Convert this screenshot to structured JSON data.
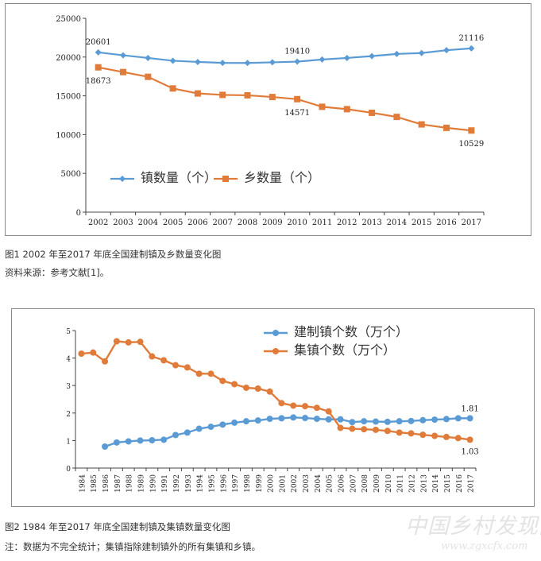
{
  "figure1": {
    "caption": "图1 2002 年至2017 年底全国建制镇及乡数量变化图",
    "source": "资料来源：参考文献[1]。",
    "chart_data": {
      "type": "line",
      "title": "",
      "xlabel": "",
      "ylabel": "",
      "categories": [
        "2002",
        "2003",
        "2004",
        "2005",
        "2006",
        "2007",
        "2008",
        "2009",
        "2010",
        "2011",
        "2012",
        "2013",
        "2014",
        "2015",
        "2016",
        "2017"
      ],
      "ylim": [
        0,
        25000
      ],
      "yticks": [
        "0",
        "5000",
        "10000",
        "15000",
        "20000",
        "25000"
      ],
      "legend_position": "bottom-left",
      "series": [
        {
          "name": "镇数量（个）",
          "color": "#5b9bd5",
          "marker": "diamond",
          "values": [
            20601,
            20226,
            19883,
            19522,
            19369,
            19249,
            19234,
            19322,
            19410,
            19683,
            19881,
            20117,
            20401,
            20515,
            20883,
            21116
          ]
        },
        {
          "name": "乡数量（个）",
          "color": "#e07b39",
          "marker": "square",
          "values": [
            18673,
            18064,
            17451,
            15951,
            15306,
            15120,
            15067,
            14848,
            14571,
            13587,
            13281,
            12812,
            12282,
            11315,
            10872,
            10529
          ]
        }
      ],
      "annotations": [
        {
          "text": "20601",
          "series": 0,
          "index": 0,
          "pos": "above"
        },
        {
          "text": "19410",
          "series": 0,
          "index": 8,
          "pos": "above"
        },
        {
          "text": "21116",
          "series": 0,
          "index": 15,
          "pos": "above"
        },
        {
          "text": "18673",
          "series": 1,
          "index": 0,
          "pos": "below"
        },
        {
          "text": "14571",
          "series": 1,
          "index": 8,
          "pos": "below"
        },
        {
          "text": "10529",
          "series": 1,
          "index": 15,
          "pos": "below"
        }
      ]
    }
  },
  "figure2": {
    "caption": "图2 1984 年至2017 年底全国建制镇及集镇数量变化图",
    "note": "注：数据为不完全统计；集镇指除建制镇外的所有集镇和乡镇。",
    "chart_data": {
      "type": "line",
      "title": "",
      "xlabel": "",
      "ylabel": "",
      "categories": [
        "1984",
        "1985",
        "1986",
        "1987",
        "1988",
        "1989",
        "1990",
        "1991",
        "1992",
        "1993",
        "1994",
        "1995",
        "1996",
        "1997",
        "1998",
        "1999",
        "2000",
        "2001",
        "2002",
        "2003",
        "2004",
        "2005",
        "2006",
        "2007",
        "2008",
        "2009",
        "2010",
        "2011",
        "2012",
        "2013",
        "2014",
        "2015",
        "2016",
        "2017"
      ],
      "ylim": [
        0,
        5
      ],
      "yticks": [
        "0",
        "1",
        "2",
        "3",
        "4",
        "5"
      ],
      "legend_position": "top-right",
      "series": [
        {
          "name": "建制镇个数（万个）",
          "color": "#5b9bd5",
          "marker": "circle",
          "values": [
            null,
            null,
            0.78,
            0.93,
            0.97,
            1.0,
            1.01,
            1.03,
            1.2,
            1.29,
            1.43,
            1.5,
            1.58,
            1.65,
            1.7,
            1.73,
            1.79,
            1.81,
            1.84,
            1.82,
            1.79,
            1.77,
            1.77,
            1.67,
            1.7,
            1.69,
            1.68,
            1.7,
            1.71,
            1.74,
            1.76,
            1.78,
            1.81,
            1.81
          ]
        },
        {
          "name": "集镇个数（万个）",
          "color": "#e07b39",
          "marker": "circle",
          "values": [
            4.16,
            4.2,
            3.88,
            4.61,
            4.57,
            4.59,
            4.06,
            3.92,
            3.74,
            3.66,
            3.43,
            3.43,
            3.17,
            3.05,
            2.92,
            2.89,
            2.78,
            2.36,
            2.27,
            2.25,
            2.19,
            2.06,
            1.46,
            1.43,
            1.41,
            1.39,
            1.35,
            1.29,
            1.26,
            1.21,
            1.17,
            1.13,
            1.09,
            1.03
          ]
        }
      ],
      "annotations": [
        {
          "text": "1.81",
          "series": 0,
          "index": 33,
          "pos": "above"
        },
        {
          "text": "1.03",
          "series": 1,
          "index": 33,
          "pos": "below"
        }
      ]
    }
  },
  "watermark": {
    "logo_text": "中国乡村发现网",
    "url": "www.zgxcfx.com"
  }
}
